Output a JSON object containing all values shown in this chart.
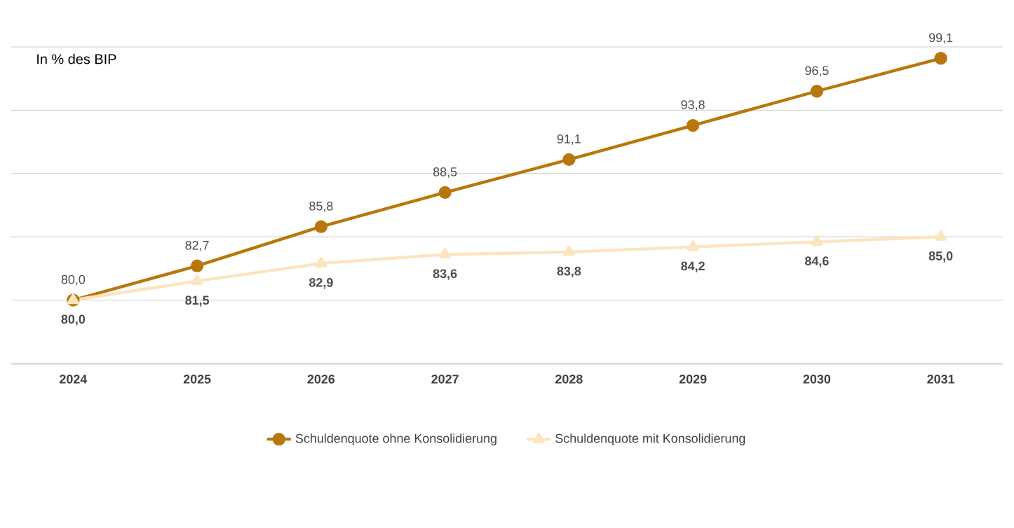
{
  "chart_data": {
    "type": "line",
    "title": "In % des BIP",
    "categories": [
      "2024",
      "2025",
      "2026",
      "2027",
      "2028",
      "2029",
      "2030",
      "2031"
    ],
    "series": [
      {
        "name": "Schuldenquote ohne Konsolidierung",
        "color": "#b8770b",
        "marker": "circle",
        "values": [
          80.0,
          82.7,
          85.8,
          88.5,
          91.1,
          93.8,
          96.5,
          99.1
        ],
        "value_labels": [
          "80,0",
          "82,7",
          "85,8",
          "88,5",
          "91,1",
          "93,8",
          "96,5",
          "99,1"
        ]
      },
      {
        "name": "Schuldenquote mit Konsolidierung",
        "color": "#fbe5bf",
        "marker": "triangle",
        "values": [
          80.0,
          81.5,
          82.9,
          83.6,
          83.8,
          84.2,
          84.6,
          85.0
        ],
        "value_labels": [
          "80,0",
          "81,5",
          "82,9",
          "83,6",
          "83,8",
          "84,2",
          "84,6",
          "85,0"
        ]
      }
    ],
    "tick_labels": "x",
    "grid": "y",
    "legend": "bottom",
    "line_style": "solid"
  }
}
